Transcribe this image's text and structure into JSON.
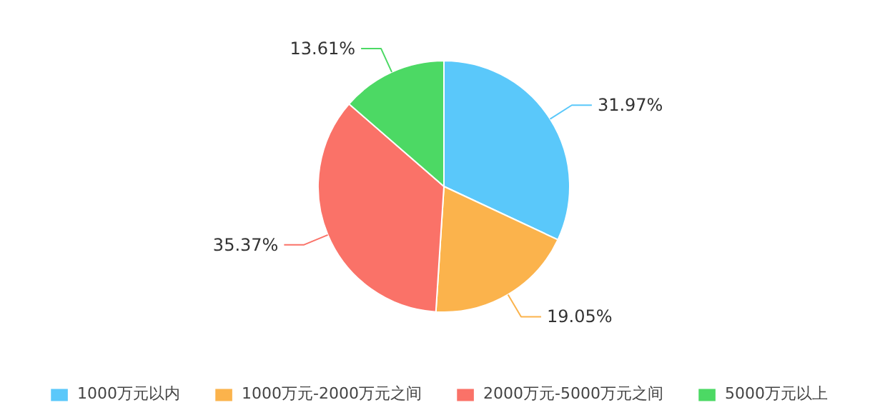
{
  "chart_data": {
    "type": "pie",
    "categories": [
      "1000万元以内",
      "1000万元-2000万元之间",
      "2000万元-5000万元之间",
      "5000万元以上"
    ],
    "values": [
      31.97,
      19.05,
      35.37,
      13.61
    ],
    "colors": [
      "#5ac8fa",
      "#fbb34c",
      "#fa7268",
      "#4cd964"
    ],
    "value_labels": [
      "31.97%",
      "19.05%",
      "35.37%",
      "13.61%"
    ],
    "legend": "bottom"
  }
}
